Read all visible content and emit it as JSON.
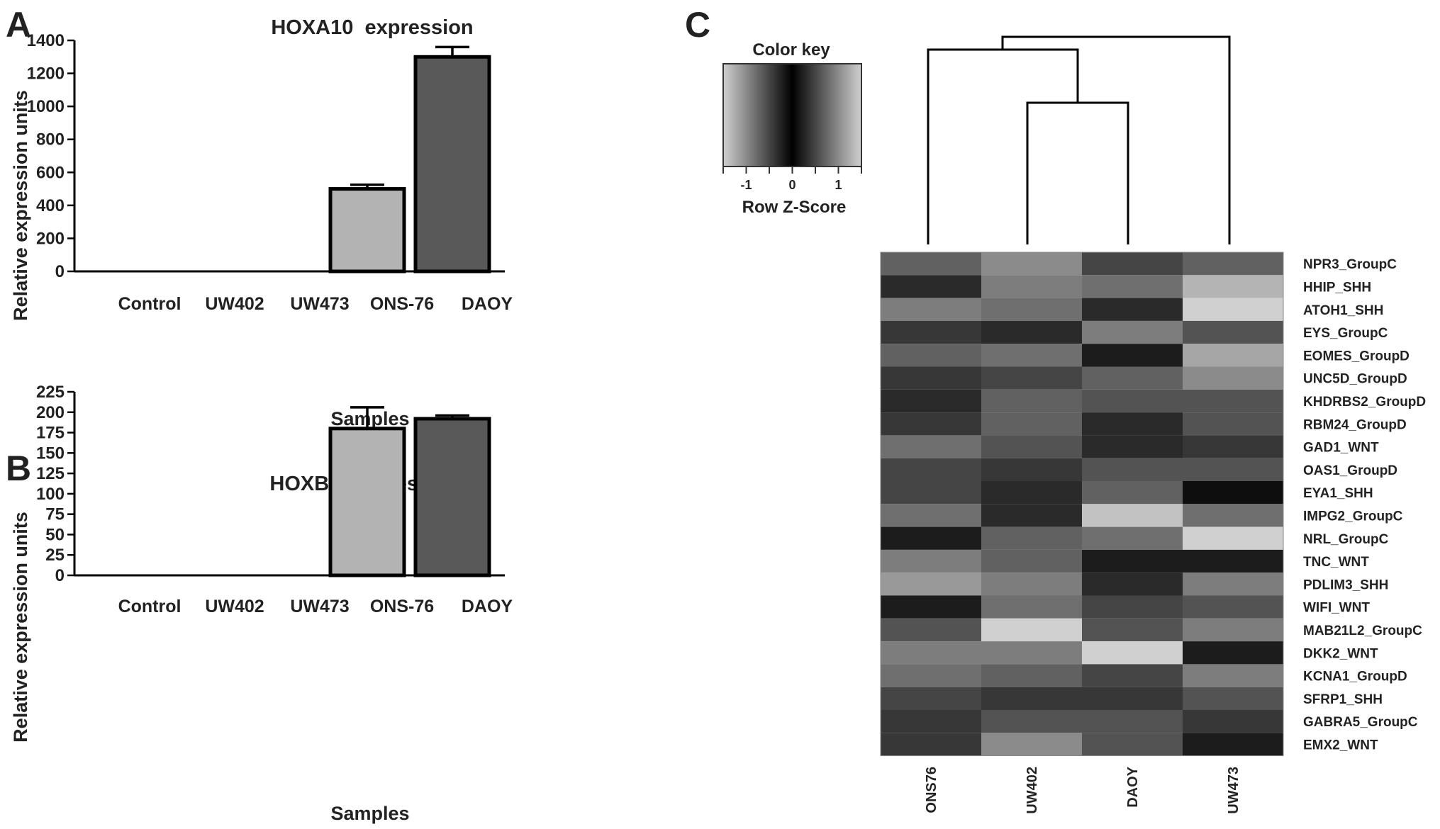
{
  "panels": {
    "a": "A",
    "b": "B",
    "c": "C"
  },
  "chart_data": [
    {
      "type": "bar",
      "title": "HOXA10  expression",
      "xlabel": "Samples",
      "ylabel": "Relative expression units",
      "categories": [
        "Control",
        "UW402",
        "UW473",
        "ONS-76",
        "DAOY"
      ],
      "values": [
        0,
        0,
        0,
        500,
        1300
      ],
      "errors": [
        0,
        0,
        0,
        25,
        60
      ],
      "bar_colors": [
        "#ffffff",
        "#ffffff",
        "#ffffff",
        "#b3b3b3",
        "#595959"
      ],
      "ylim": [
        0,
        1400
      ],
      "yticks": [
        0,
        200,
        400,
        600,
        800,
        1000,
        1200,
        1400
      ],
      "grid": false
    },
    {
      "type": "bar",
      "title": "HOXB4  expression",
      "xlabel": "Samples",
      "ylabel": "Relative expression units",
      "categories": [
        "Control",
        "UW402",
        "UW473",
        "ONS-76",
        "DAOY"
      ],
      "values": [
        0,
        0,
        0,
        180,
        192
      ],
      "errors": [
        0,
        0,
        0,
        26,
        4
      ],
      "bar_colors": [
        "#ffffff",
        "#ffffff",
        "#ffffff",
        "#b3b3b3",
        "#595959"
      ],
      "ylim": [
        0,
        225
      ],
      "yticks": [
        0,
        25,
        50,
        75,
        100,
        125,
        150,
        175,
        200,
        225
      ],
      "grid": false
    },
    {
      "type": "heatmap",
      "columns": [
        "ONS76",
        "UW402",
        "DAOY",
        "UW473"
      ],
      "rows": [
        "NPR3_GroupC",
        "HHIP_SHH",
        "ATOH1_SHH",
        "EYS_GroupC",
        "EOMES_GroupD",
        "UNC5D_GroupD",
        "KHDRBS2_GroupD",
        "RBM24_GroupD",
        "GAD1_WNT",
        "OAS1_GroupD",
        "EYA1_SHH",
        "IMPG2_GroupC",
        "NRL_GroupC",
        "TNC_WNT",
        "PDLIM3_SHH",
        "WIFI_WNT",
        "MAB21L2_GroupC",
        "DKK2_WNT",
        "KCNA1_GroupD",
        "SFRP1_SHH",
        "GABRA5_GroupC",
        "EMX2_WNT"
      ],
      "values": [
        [
          -0.7,
          1.0,
          -0.5,
          -0.7
        ],
        [
          0.3,
          -0.9,
          -0.8,
          1.3
        ],
        [
          -0.9,
          -0.8,
          -0.3,
          1.5
        ],
        [
          0.4,
          -0.3,
          -0.9,
          0.6
        ],
        [
          -0.7,
          -0.8,
          -0.2,
          1.2
        ],
        [
          -0.4,
          -0.5,
          -0.7,
          1.0
        ],
        [
          0.3,
          -0.7,
          0.6,
          -0.6
        ],
        [
          -0.4,
          -0.7,
          -0.3,
          0.6
        ],
        [
          0.8,
          -0.6,
          -0.3,
          -0.4
        ],
        [
          -0.5,
          -0.4,
          -0.6,
          0.6
        ],
        [
          0.5,
          0.3,
          -0.7,
          -0.1
        ],
        [
          -0.8,
          0.3,
          1.4,
          -0.8
        ],
        [
          -0.2,
          -0.7,
          -0.8,
          1.5
        ],
        [
          0.9,
          -0.7,
          -0.2,
          -0.2
        ],
        [
          1.1,
          -0.9,
          0.3,
          -0.9
        ],
        [
          0.2,
          -0.8,
          0.5,
          -0.6
        ],
        [
          -0.6,
          1.7,
          -0.6,
          -0.9
        ],
        [
          -0.9,
          -0.9,
          1.6,
          -0.2
        ],
        [
          -0.8,
          0.7,
          0.5,
          -0.9
        ],
        [
          0.5,
          -0.4,
          -0.4,
          0.6
        ],
        [
          -0.4,
          -0.6,
          0.6,
          -0.4
        ],
        [
          0.4,
          -1.0,
          0.6,
          -0.2
        ]
      ],
      "color_key": {
        "title": "Color key",
        "xlabel": "Row Z-Score",
        "ticks": [
          "-1",
          "0",
          "1"
        ],
        "range": [
          -1.5,
          1.5
        ],
        "low_color": "#d0d0d0",
        "mid_color": "#000000",
        "high_color": "#d0d0d0"
      },
      "dendrogram": "((ONS76,(UW402,DAOY)),UW473)"
    }
  ]
}
